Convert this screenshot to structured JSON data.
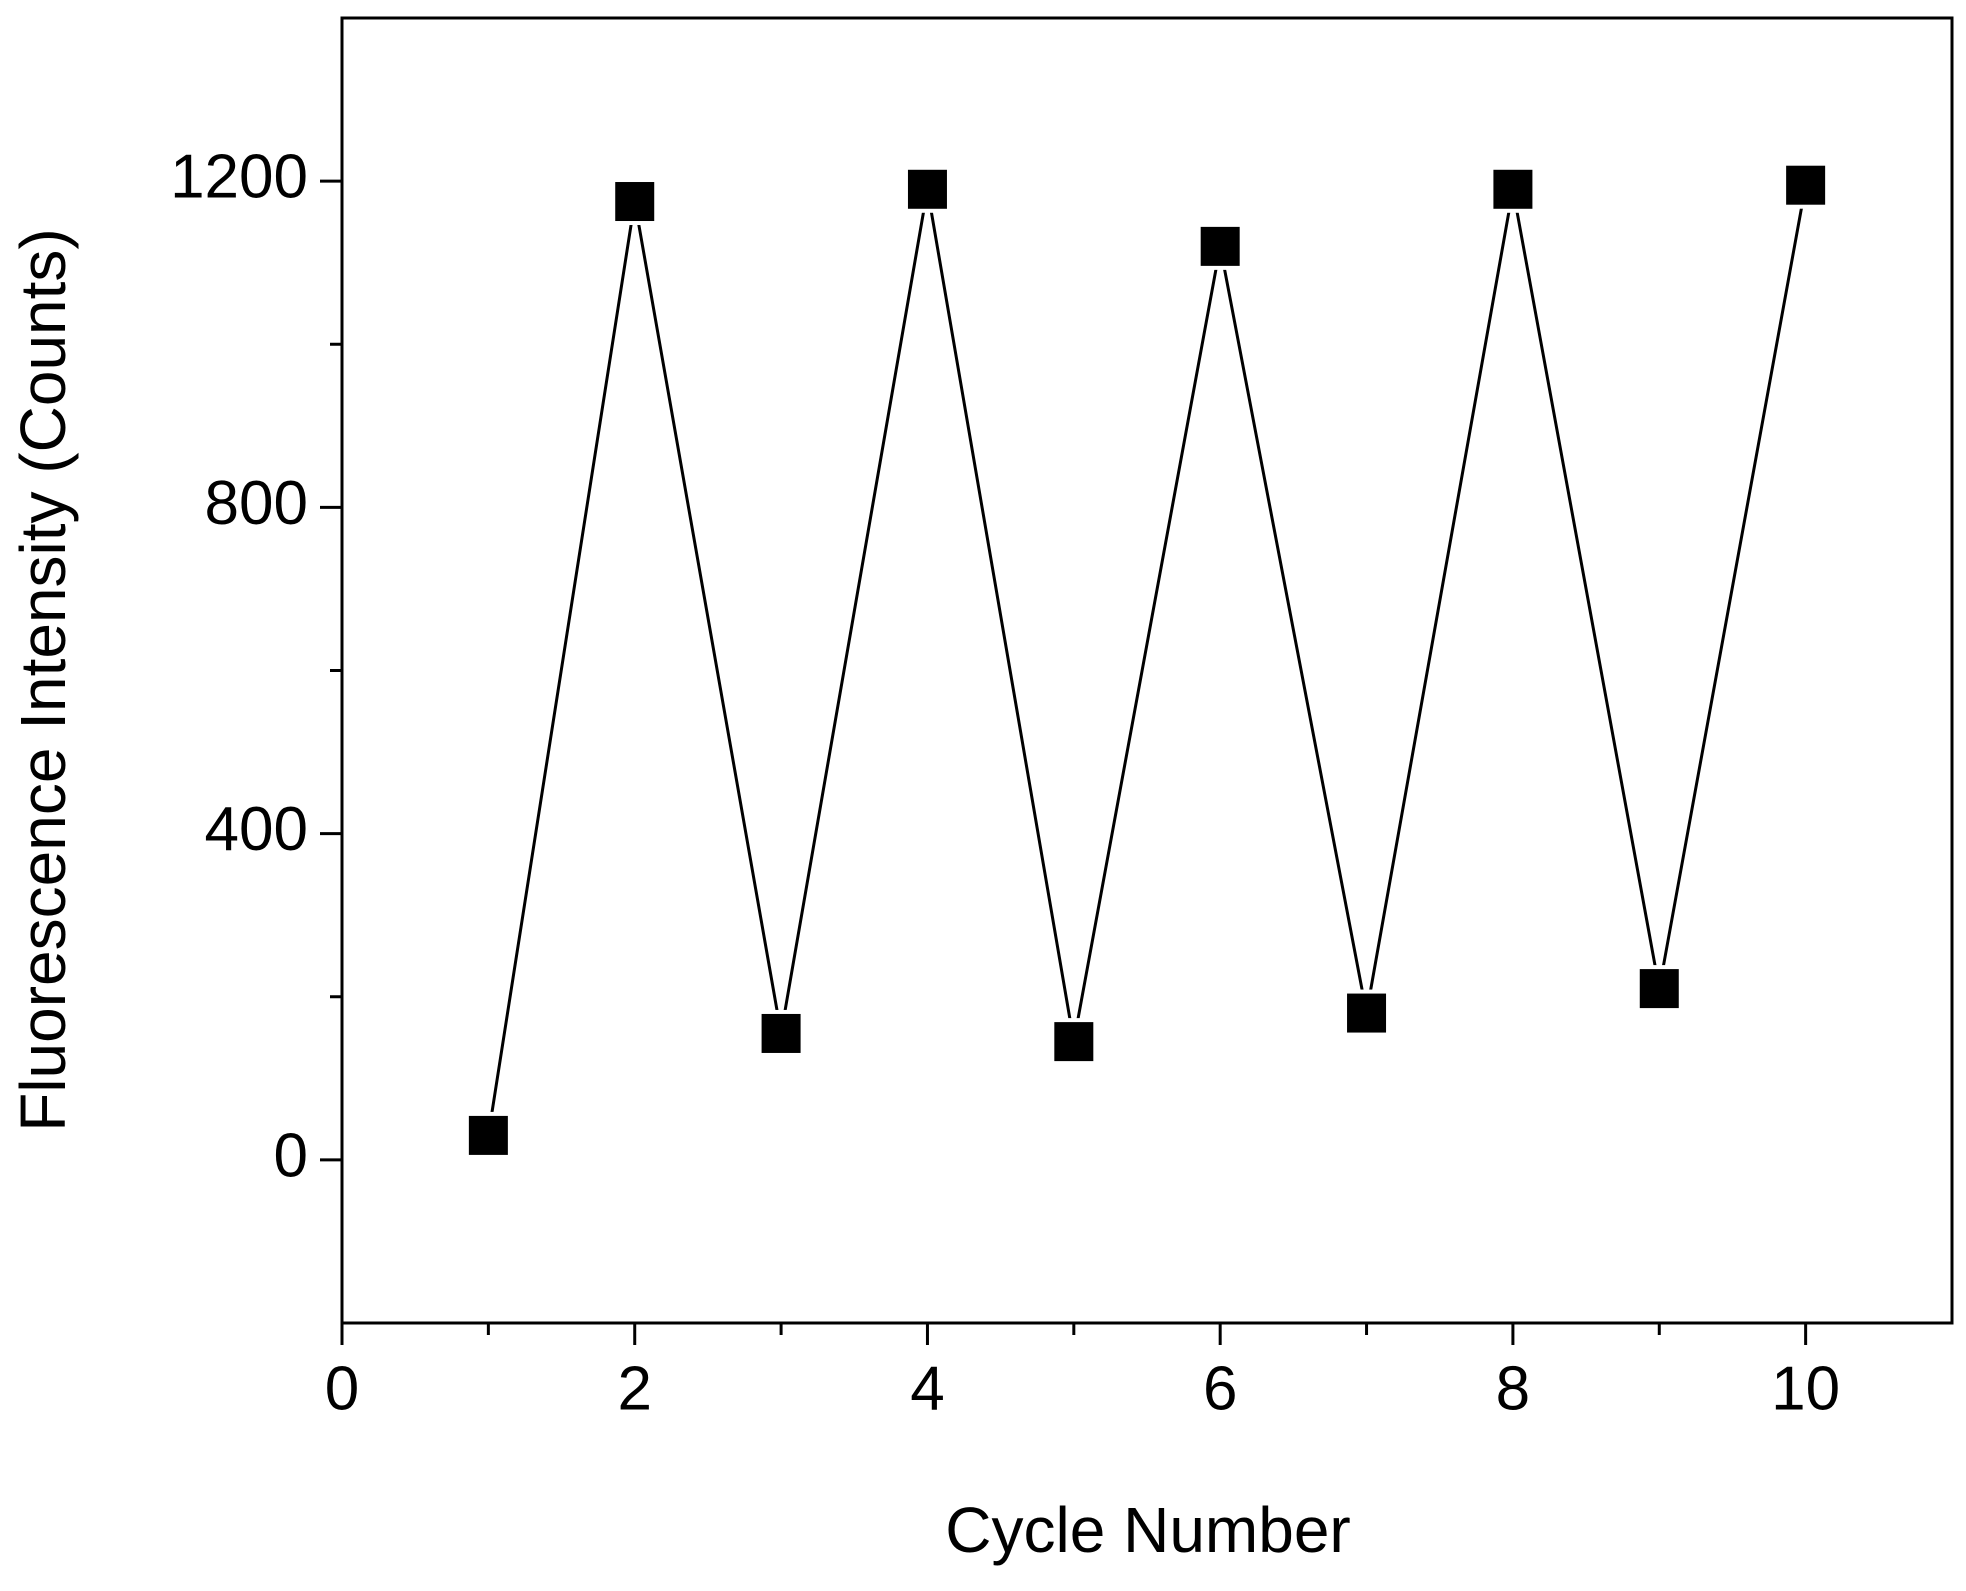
{
  "chart_data": {
    "type": "line",
    "x_label": "Cycle Number",
    "y_label": "Fluorescence Intensity (Counts)",
    "x": [
      1,
      2,
      3,
      4,
      5,
      6,
      7,
      8,
      9,
      10
    ],
    "series": [
      {
        "name": "Fluorescence",
        "color": "#000000",
        "values": [
          30,
          1175,
          155,
          1190,
          145,
          1120,
          180,
          1190,
          210,
          1195
        ]
      }
    ],
    "xlim": [
      0,
      11
    ],
    "xticks": [
      0,
      2,
      4,
      6,
      8,
      10
    ],
    "xminorticks": [
      1,
      3,
      5,
      7,
      9
    ],
    "ylim": [
      -200,
      1400
    ],
    "yticks": [
      0,
      400,
      800,
      1200
    ],
    "yminorticks": [
      200,
      600,
      1000
    ],
    "marker": "square",
    "grid": false
  }
}
